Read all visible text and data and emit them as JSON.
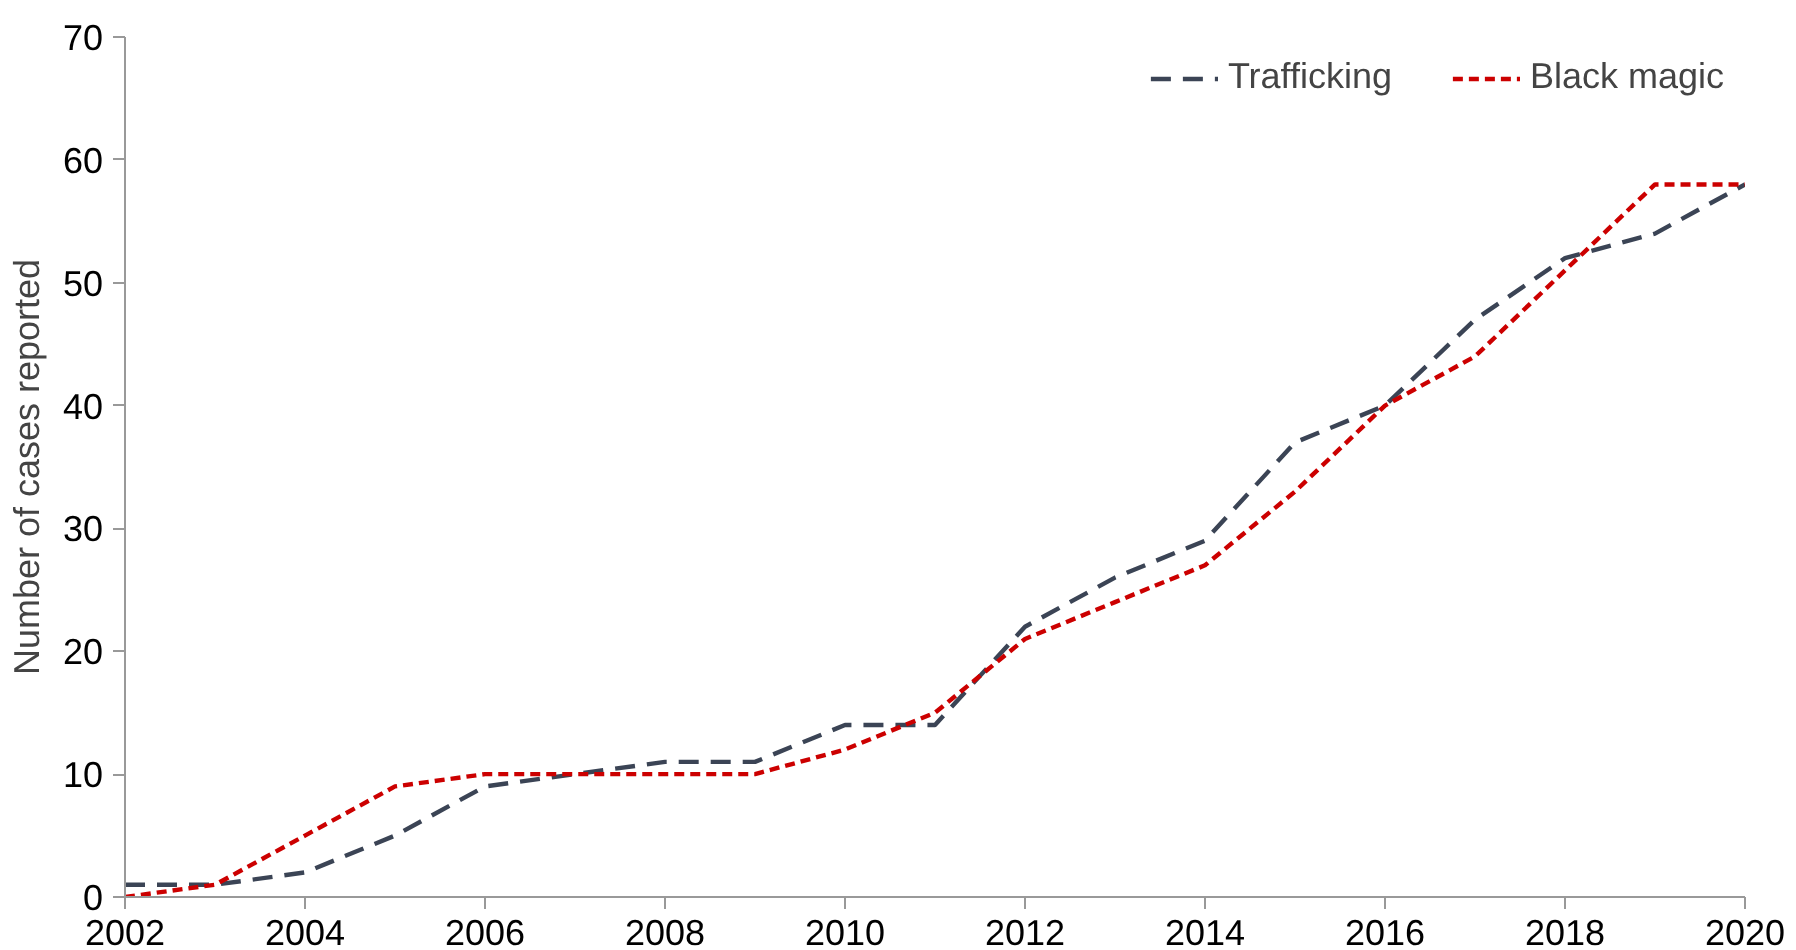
{
  "chart_data": {
    "type": "line",
    "ylabel": "Number of cases reported",
    "x": [
      2002,
      2003,
      2004,
      2005,
      2006,
      2007,
      2008,
      2009,
      2010,
      2011,
      2012,
      2013,
      2014,
      2015,
      2016,
      2017,
      2018,
      2019,
      2020
    ],
    "series": [
      {
        "name": "Trafficking",
        "color": "#3b4455",
        "line_style": "dashed",
        "values": [
          1,
          1,
          2,
          5,
          9,
          10,
          11,
          11,
          14,
          14,
          22,
          26,
          29,
          37,
          40,
          47,
          52,
          54,
          58
        ]
      },
      {
        "name": "Black magic",
        "color": "#cc0000",
        "line_style": "dotted",
        "values": [
          0,
          1,
          5,
          9,
          10,
          10,
          10,
          10,
          12,
          15,
          21,
          24,
          27,
          33,
          40,
          44,
          51,
          58,
          58
        ]
      }
    ],
    "xlim": [
      2002,
      2020
    ],
    "xticks": [
      2002,
      2004,
      2006,
      2008,
      2010,
      2012,
      2014,
      2016,
      2018,
      2020
    ],
    "ylim": [
      0,
      70
    ],
    "yticks": [
      0,
      10,
      20,
      30,
      40,
      50,
      60,
      70
    ],
    "grid": false,
    "legend": "top right",
    "marker": "none"
  }
}
